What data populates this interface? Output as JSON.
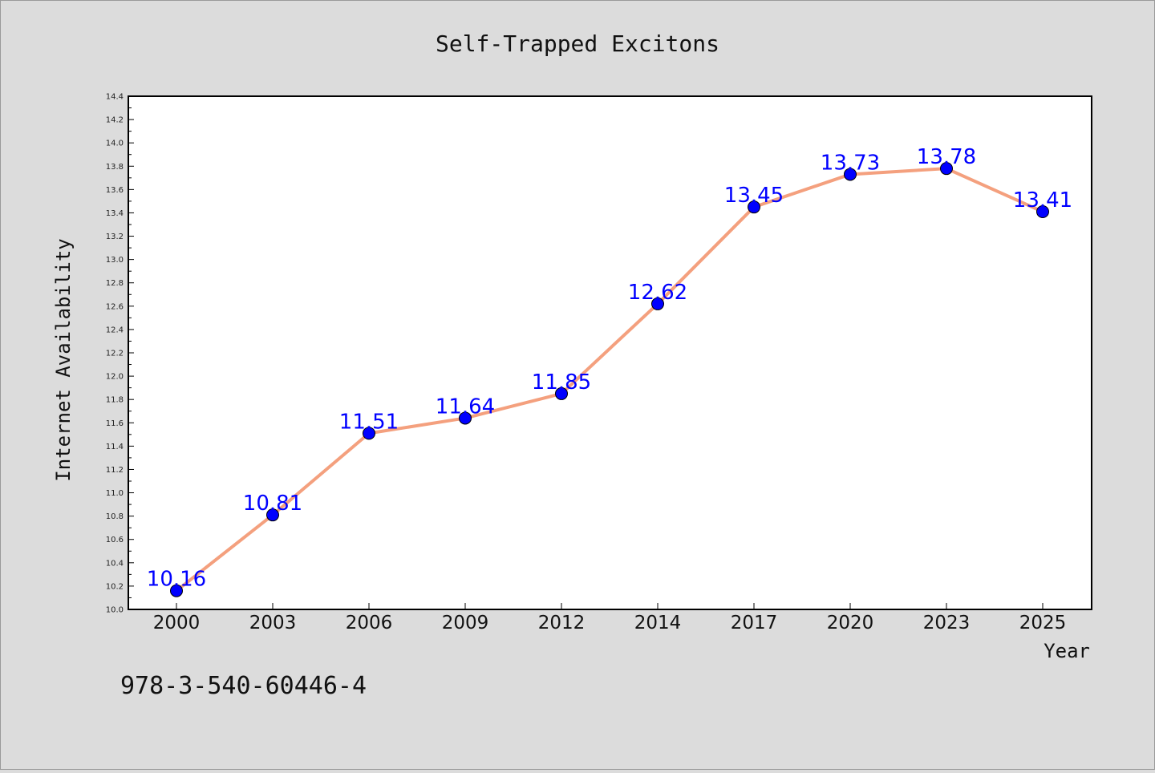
{
  "chart_data": {
    "type": "line",
    "title": "Self-Trapped Excitons",
    "xlabel": "Year",
    "ylabel": "Internet Availability",
    "categories": [
      "2000",
      "2003",
      "2006",
      "2009",
      "2012",
      "2014",
      "2017",
      "2020",
      "2023",
      "2025"
    ],
    "series": [
      {
        "values": [
          10.16,
          10.81,
          11.51,
          11.64,
          11.85,
          12.62,
          13.45,
          13.73,
          13.78,
          13.41
        ],
        "data_labels": [
          "10.16",
          "10.81",
          "11.51",
          "11.64",
          "11.85",
          "12.62",
          "13.45",
          "13.73",
          "13.78",
          "13.41"
        ],
        "line_color": "#f4a07e",
        "marker_color": "#0000ff"
      }
    ],
    "ylim": [
      10.0,
      14.4
    ],
    "yticks": [
      "10.0",
      "10.2",
      "10.4",
      "10.6",
      "10.8",
      "11.0",
      "11.2",
      "11.4",
      "11.6",
      "11.8",
      "12.0",
      "12.2",
      "12.4",
      "12.6",
      "12.8",
      "13.0",
      "13.2",
      "13.4",
      "13.6",
      "13.8",
      "14.0",
      "14.2",
      "14.4"
    ],
    "grid": false,
    "legend": "none"
  },
  "annotation": {
    "isbn": "978-3-540-60446-4"
  },
  "colors": {
    "background": "#dcdcdc",
    "plot_background": "#ffffff",
    "axis": "#000000"
  }
}
